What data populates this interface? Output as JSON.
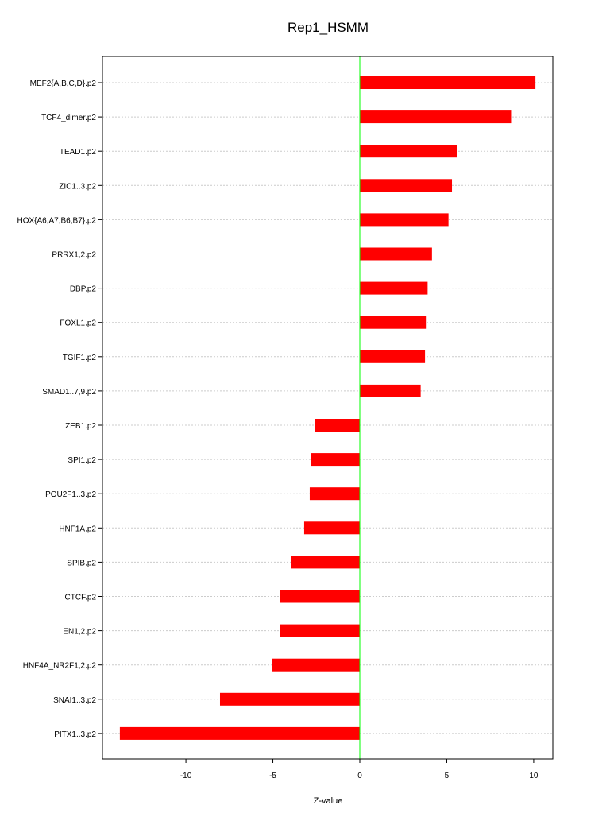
{
  "chart_data": {
    "type": "bar",
    "orientation": "horizontal",
    "title": "Rep1_HSMM",
    "xlabel": "Z-value",
    "ylabel": "",
    "xlim": [
      -14.8,
      11.1
    ],
    "xticks": [
      -10,
      -5,
      0,
      5,
      10
    ],
    "grid": "horizontal dotted",
    "colors": {
      "bar": "#ff0000",
      "zero_line": "#00ff00",
      "grid": "#cccccc"
    },
    "categories": [
      "MEF2{A,B,C,D}.p2",
      "TCF4_dimer.p2",
      "TEAD1.p2",
      "ZIC1..3.p2",
      "HOX{A6,A7,B6,B7}.p2",
      "PRRX1,2.p2",
      "DBP.p2",
      "FOXL1.p2",
      "TGIF1.p2",
      "SMAD1..7,9.p2",
      "ZEB1.p2",
      "SPI1.p2",
      "POU2F1..3.p2",
      "HNF1A.p2",
      "SPIB.p2",
      "CTCF.p2",
      "EN1,2.p2",
      "HNF4A_NR2F1,2.p2",
      "SNAI1..3.p2",
      "PITX1..3.p2"
    ],
    "values": [
      10.1,
      8.7,
      5.6,
      5.3,
      5.1,
      4.15,
      3.9,
      3.8,
      3.75,
      3.5,
      -2.6,
      -2.83,
      -2.88,
      -3.2,
      -3.93,
      -4.57,
      -4.6,
      -5.07,
      -8.04,
      -13.8
    ]
  }
}
